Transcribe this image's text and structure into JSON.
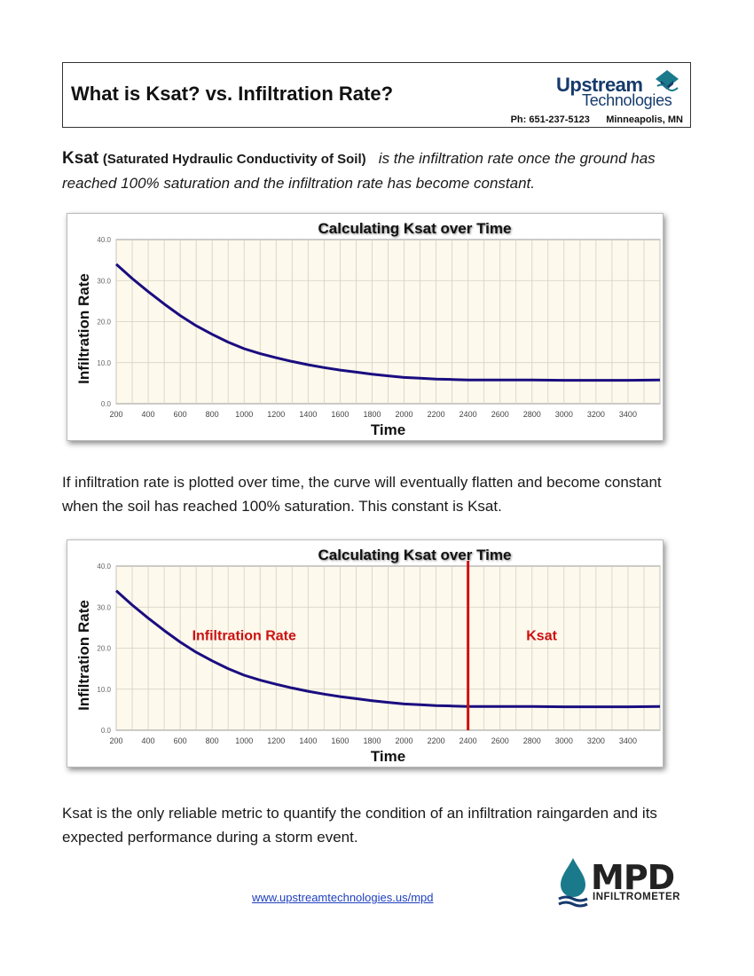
{
  "header": {
    "title": "What is Ksat?  vs.  Infiltration Rate?",
    "logo_line1": "Upstream",
    "logo_line2": "Technologies",
    "contact": "Ph: 651-237-5123      Minneapolis, MN"
  },
  "intro": {
    "term": "Ksat",
    "term_full": "(Saturated Hydraulic Conductivity of Soil)",
    "definition": "is the infiltration rate once the ground has reached 100% saturation and the infiltration rate has become constant."
  },
  "paragraph1": "If infiltration rate is plotted over time, the curve will eventually flatten and become constant when the soil has reached 100% saturation.  This constant is Ksat.",
  "paragraph2": "Ksat is the only reliable metric to quantify the condition of an infiltration raingarden and its expected performance during a storm event.",
  "footer": {
    "link": "www.upstreamtechnologies.us/mpd",
    "mpd_logo": "MPD",
    "mpd_sub": "INFILTROMETER"
  },
  "colors": {
    "curve": "#1a0d80",
    "marker": "#cc1111",
    "plot_bg": "#fdf9ec",
    "brand": "#163a6b"
  },
  "chart_data": [
    {
      "type": "line",
      "title": "Calculating Ksat over Time",
      "xlabel": "Time",
      "ylabel": "Infiltration Rate",
      "xlim": [
        200,
        3600
      ],
      "ylim": [
        0,
        40
      ],
      "x_ticks": [
        "200",
        "400",
        "600",
        "800",
        "1000",
        "1200",
        "1400",
        "1600",
        "1800",
        "2000",
        "2200",
        "2400",
        "2600",
        "2800",
        "3000",
        "3200",
        "3400"
      ],
      "y_ticks": [
        "0.0",
        "10.0",
        "20.0",
        "30.0",
        "40.0"
      ],
      "grid": true,
      "series": [
        {
          "x": [
            200,
            300,
            400,
            500,
            600,
            700,
            800,
            900,
            1000,
            1100,
            1200,
            1300,
            1400,
            1500,
            1600,
            1700,
            1800,
            1900,
            2000,
            2100,
            2200,
            2300,
            2400,
            2600,
            2800,
            3000,
            3200,
            3400,
            3600
          ],
          "y": [
            34,
            30.5,
            27.3,
            24.3,
            21.5,
            19,
            16.9,
            15,
            13.4,
            12.2,
            11.2,
            10.3,
            9.5,
            8.8,
            8.2,
            7.7,
            7.2,
            6.8,
            6.4,
            6.2,
            6.0,
            5.9,
            5.8,
            5.8,
            5.8,
            5.7,
            5.7,
            5.7,
            5.8
          ]
        }
      ],
      "annotations": []
    },
    {
      "type": "line",
      "title": "Calculating Ksat over Time",
      "xlabel": "Time",
      "ylabel": "Infiltration Rate",
      "xlim": [
        200,
        3600
      ],
      "ylim": [
        0,
        40
      ],
      "x_ticks": [
        "200",
        "400",
        "600",
        "800",
        "1000",
        "1200",
        "1400",
        "1600",
        "1800",
        "2000",
        "2200",
        "2400",
        "2600",
        "2800",
        "3000",
        "3200",
        "3400"
      ],
      "y_ticks": [
        "0.0",
        "10.0",
        "20.0",
        "30.0",
        "40.0"
      ],
      "grid": true,
      "series": [
        {
          "x": [
            200,
            300,
            400,
            500,
            600,
            700,
            800,
            900,
            1000,
            1100,
            1200,
            1300,
            1400,
            1500,
            1600,
            1700,
            1800,
            1900,
            2000,
            2100,
            2200,
            2300,
            2400,
            2600,
            2800,
            3000,
            3200,
            3400,
            3600
          ],
          "y": [
            34,
            30.5,
            27.3,
            24.3,
            21.5,
            19,
            16.9,
            15,
            13.4,
            12.2,
            11.2,
            10.3,
            9.5,
            8.8,
            8.2,
            7.7,
            7.2,
            6.8,
            6.4,
            6.2,
            6.0,
            5.9,
            5.8,
            5.8,
            5.8,
            5.7,
            5.7,
            5.7,
            5.8
          ]
        }
      ],
      "vertical_marker": 2400,
      "annotations": [
        {
          "text": "Infiltration Rate",
          "x": 1000,
          "y": 22
        },
        {
          "text": "Ksat",
          "x": 2860,
          "y": 22
        }
      ]
    }
  ]
}
